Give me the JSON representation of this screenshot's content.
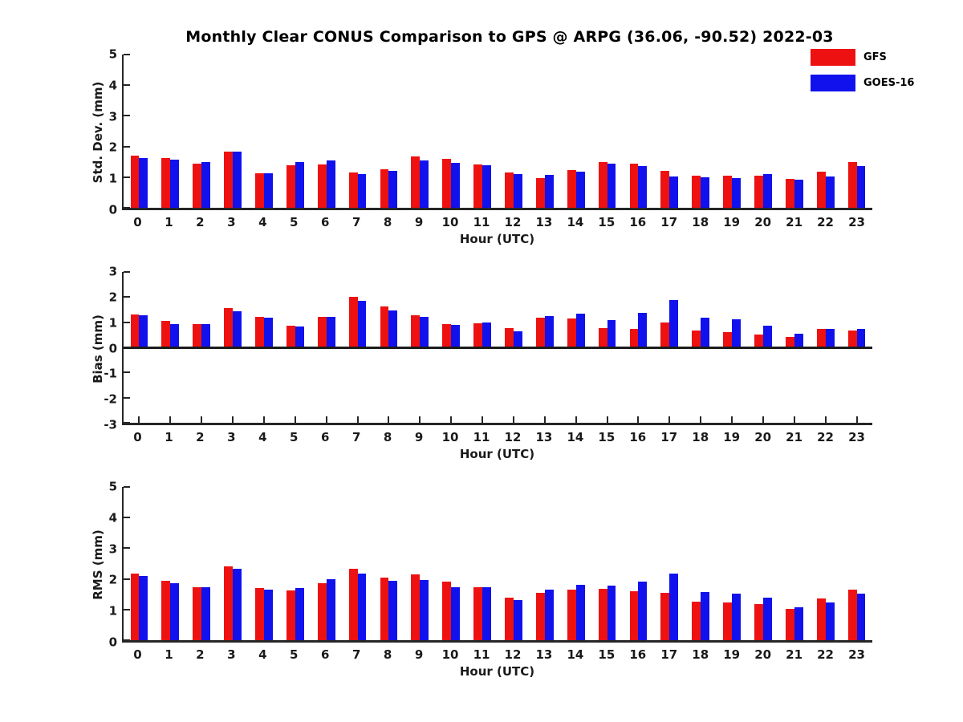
{
  "figure": {
    "title": "Monthly Clear CONUS Comparison to GPS @ ARPG (36.06, -90.52) 2022-03",
    "background": "#ffffff",
    "axis_color": "#262626",
    "text_color": "#1a1a1a"
  },
  "legend": {
    "position": "top-right",
    "items": [
      {
        "label": "GFS",
        "color": "#ee1111"
      },
      {
        "label": "GOES-16",
        "color": "#1111ee"
      }
    ]
  },
  "chart_data": [
    {
      "type": "bar",
      "panel": "std-dev",
      "ylabel": "Std. Dev. (mm)",
      "xlabel": "Hour (UTC)",
      "ylim": [
        0,
        5
      ],
      "yticks": [
        0,
        1,
        2,
        3,
        4,
        5
      ],
      "grid": false,
      "categories": [
        "0",
        "1",
        "2",
        "3",
        "4",
        "5",
        "6",
        "7",
        "8",
        "9",
        "10",
        "11",
        "12",
        "13",
        "14",
        "15",
        "16",
        "17",
        "18",
        "19",
        "20",
        "21",
        "22",
        "23"
      ],
      "series": [
        {
          "name": "GFS",
          "color": "#ee1111",
          "values": [
            1.7,
            1.63,
            1.45,
            1.83,
            1.12,
            1.38,
            1.42,
            1.15,
            1.25,
            1.67,
            1.6,
            1.42,
            1.16,
            0.98,
            1.22,
            1.48,
            1.43,
            1.2,
            1.05,
            1.05,
            1.05,
            0.95,
            1.17,
            1.49
          ]
        },
        {
          "name": "GOES-16",
          "color": "#1111ee",
          "values": [
            1.62,
            1.57,
            1.48,
            1.83,
            1.12,
            1.48,
            1.55,
            1.1,
            1.2,
            1.55,
            1.46,
            1.38,
            1.11,
            1.08,
            1.19,
            1.43,
            1.35,
            1.02,
            1.0,
            0.98,
            1.09,
            0.92,
            1.02,
            1.37
          ]
        }
      ]
    },
    {
      "type": "bar",
      "panel": "bias",
      "ylabel": "Bias (mm)",
      "xlabel": "Hour (UTC)",
      "ylim": [
        -3,
        3
      ],
      "yticks": [
        -3,
        -2,
        -1,
        0,
        1,
        2,
        3
      ],
      "grid": false,
      "categories": [
        "0",
        "1",
        "2",
        "3",
        "4",
        "5",
        "6",
        "7",
        "8",
        "9",
        "10",
        "11",
        "12",
        "13",
        "14",
        "15",
        "16",
        "17",
        "18",
        "19",
        "20",
        "21",
        "22",
        "23"
      ],
      "series": [
        {
          "name": "GFS",
          "color": "#ee1111",
          "values": [
            1.32,
            1.05,
            0.93,
            1.55,
            1.21,
            0.86,
            1.22,
            2.0,
            1.62,
            1.29,
            0.94,
            0.95,
            0.77,
            1.17,
            1.14,
            0.77,
            0.74,
            1.0,
            0.68,
            0.61,
            0.52,
            0.41,
            0.75,
            0.67
          ]
        },
        {
          "name": "GOES-16",
          "color": "#1111ee",
          "values": [
            1.29,
            0.93,
            0.93,
            1.43,
            1.18,
            0.83,
            1.22,
            1.85,
            1.48,
            1.22,
            0.9,
            1.0,
            0.64,
            1.26,
            1.34,
            1.07,
            1.36,
            1.87,
            1.19,
            1.13,
            0.85,
            0.55,
            0.75,
            0.72
          ]
        }
      ]
    },
    {
      "type": "bar",
      "panel": "rms",
      "ylabel": "RMS (mm)",
      "xlabel": "Hour (UTC)",
      "ylim": [
        0,
        5
      ],
      "yticks": [
        0,
        1,
        2,
        3,
        4,
        5
      ],
      "grid": false,
      "categories": [
        "0",
        "1",
        "2",
        "3",
        "4",
        "5",
        "6",
        "7",
        "8",
        "9",
        "10",
        "11",
        "12",
        "13",
        "14",
        "15",
        "16",
        "17",
        "18",
        "19",
        "20",
        "21",
        "22",
        "23"
      ],
      "series": [
        {
          "name": "GFS",
          "color": "#ee1111",
          "values": [
            2.18,
            1.95,
            1.74,
            2.4,
            1.69,
            1.63,
            1.86,
            2.32,
            2.05,
            2.15,
            1.9,
            1.73,
            1.4,
            1.55,
            1.66,
            1.67,
            1.61,
            1.54,
            1.25,
            1.22,
            1.17,
            1.03,
            1.37,
            1.64
          ]
        },
        {
          "name": "GOES-16",
          "color": "#1111ee",
          "values": [
            2.1,
            1.86,
            1.74,
            2.33,
            1.66,
            1.71,
            2.0,
            2.18,
            1.93,
            1.97,
            1.73,
            1.73,
            1.3,
            1.66,
            1.8,
            1.79,
            1.92,
            2.17,
            1.56,
            1.52,
            1.39,
            1.08,
            1.24,
            1.52
          ]
        }
      ]
    }
  ]
}
